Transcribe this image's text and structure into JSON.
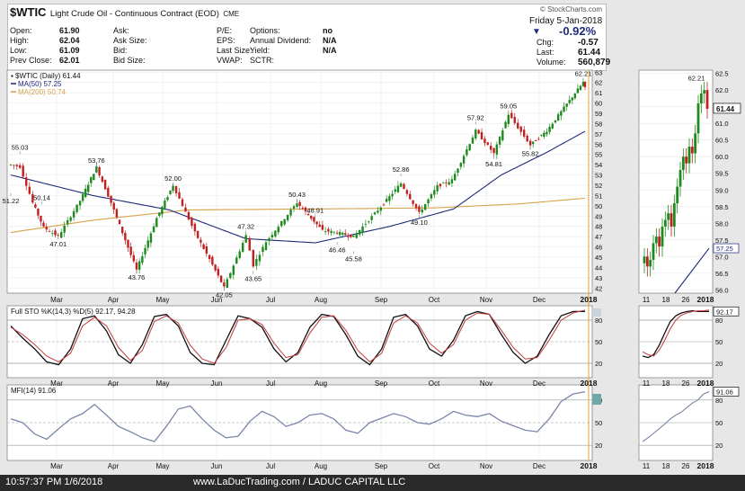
{
  "header": {
    "symbol": "$WTIC",
    "name": "Light Crude Oil - Continuous Contract (EOD)",
    "exchange": "CME",
    "watermark": "© StockCharts.com",
    "date": "Friday   5-Jan-2018",
    "change_pct": "-0.92%",
    "quote": [
      [
        [
          "Open:",
          "61.90"
        ],
        [
          "Ask:",
          ""
        ],
        [
          "P/E:",
          ""
        ],
        [
          "Options:",
          "no"
        ]
      ],
      [
        [
          "High:",
          "62.04"
        ],
        [
          "Ask Size:",
          ""
        ],
        [
          "EPS:",
          ""
        ],
        [
          "Annual Dividend:",
          "N/A"
        ]
      ],
      [
        [
          "Low:",
          "61.09"
        ],
        [
          "Bid:",
          ""
        ],
        [
          "Last Size:",
          ""
        ],
        [
          "Yield:",
          "N/A"
        ]
      ],
      [
        [
          "Prev Close:",
          "62.01"
        ],
        [
          "Bid Size:",
          ""
        ],
        [
          "VWAP:",
          ""
        ],
        [
          "SCTR:",
          ""
        ]
      ]
    ],
    "right_stats": [
      [
        "Chg:",
        "-0.57"
      ],
      [
        "Last:",
        "61.44"
      ],
      [
        "Volume:",
        "560,879"
      ]
    ]
  },
  "legend": {
    "price": "▪ $WTIC (Daily) 61.44",
    "ma50": "MA(50) 57.25",
    "ma200": "MA(200) 50.74",
    "sto": "Full STO %K(14,3) %D(5) 92.17, 94.28",
    "mfi": "MFI(14) 91.06"
  },
  "footer": {
    "left": "10:57:37 PM 1/6/2018",
    "center": "www.LaDucTrading.com / LADUC CAPITAL LLC"
  },
  "colors": {
    "up": "#1c8a1c",
    "down": "#c21f1f",
    "ma50": "#1f2a7a",
    "ma200": "#d6a24a",
    "k": "#111111",
    "d": "#c33b3b",
    "mfi": "#7a86a8",
    "cursor": "#e0a040"
  },
  "chart_data": [
    {
      "type": "candlestick",
      "title": "$WTIC Light Crude Oil - Continuous Contract (EOD)",
      "months": [
        "Mar",
        "Apr",
        "May",
        "Jun",
        "Jul",
        "Aug",
        "Sep",
        "Oct",
        "Nov",
        "Dec",
        "2018"
      ],
      "y_ticks": [
        42,
        43,
        44,
        45,
        46,
        47,
        48,
        49,
        50,
        51,
        52,
        53,
        54,
        55,
        56,
        57,
        58,
        59,
        60,
        61,
        62,
        63
      ],
      "ylim": [
        41.5,
        63.2
      ],
      "series_keypoints": [
        {
          "date": "2017-02-24",
          "close": 54.0
        },
        {
          "date": "2017-03-01",
          "close": 53.8
        },
        {
          "date": "2017-03-08",
          "close": 50.3
        },
        {
          "date": "2017-03-14",
          "close": 47.9
        },
        {
          "date": "2017-03-22",
          "close": 47.01
        },
        {
          "date": "2017-04-03",
          "close": 50.5
        },
        {
          "date": "2017-04-12",
          "close": 53.76
        },
        {
          "date": "2017-04-20",
          "close": 50.3
        },
        {
          "date": "2017-05-04",
          "close": 43.76
        },
        {
          "date": "2017-05-15",
          "close": 48.8
        },
        {
          "date": "2017-05-24",
          "close": 52.0
        },
        {
          "date": "2017-06-05",
          "close": 47.4
        },
        {
          "date": "2017-06-13",
          "close": 44.8
        },
        {
          "date": "2017-06-21",
          "close": 42.05
        },
        {
          "date": "2017-07-03",
          "close": 47.1
        },
        {
          "date": "2017-07-07",
          "close": 44.2
        },
        {
          "date": "2017-07-14",
          "close": 46.5
        },
        {
          "date": "2017-07-31",
          "close": 50.3
        },
        {
          "date": "2017-08-14",
          "close": 47.6
        },
        {
          "date": "2017-08-22",
          "close": 47.4
        },
        {
          "date": "2017-08-31",
          "close": 47.0
        },
        {
          "date": "2017-09-15",
          "close": 49.9
        },
        {
          "date": "2017-09-26",
          "close": 52.2
        },
        {
          "date": "2017-10-06",
          "close": 49.3
        },
        {
          "date": "2017-10-16",
          "close": 51.9
        },
        {
          "date": "2017-10-24",
          "close": 52.5
        },
        {
          "date": "2017-11-06",
          "close": 57.3
        },
        {
          "date": "2017-11-16",
          "close": 55.1
        },
        {
          "date": "2017-11-24",
          "close": 58.9
        },
        {
          "date": "2017-12-06",
          "close": 55.9
        },
        {
          "date": "2017-12-15",
          "close": 57.3
        },
        {
          "date": "2017-12-26",
          "close": 59.9
        },
        {
          "date": "2018-01-04",
          "close": 62.01
        },
        {
          "date": "2018-01-05",
          "close": 61.44
        }
      ],
      "annotations": [
        {
          "label": "51.22",
          "value": 51.22
        },
        {
          "label": "55.03",
          "value": 55.03
        },
        {
          "label": "50.14",
          "value": 50.14
        },
        {
          "label": "47.01",
          "value": 47.01
        },
        {
          "label": "53.76",
          "value": 53.76
        },
        {
          "label": "43.76",
          "value": 43.76
        },
        {
          "label": "52.00",
          "value": 52.0
        },
        {
          "label": "42.05",
          "value": 42.05
        },
        {
          "label": "47.32",
          "value": 47.32
        },
        {
          "label": "43.65",
          "value": 43.65
        },
        {
          "label": "50.43",
          "value": 50.43
        },
        {
          "label": "48.91",
          "value": 48.91
        },
        {
          "label": "46.46",
          "value": 46.46
        },
        {
          "label": "45.58",
          "value": 45.58
        },
        {
          "label": "52.86",
          "value": 52.86
        },
        {
          "label": "49.10",
          "value": 49.1
        },
        {
          "label": "57.92",
          "value": 57.92
        },
        {
          "label": "59.05",
          "value": 59.05
        },
        {
          "label": "54.81",
          "value": 54.81
        },
        {
          "label": "55.82",
          "value": 55.82
        },
        {
          "label": "62.21",
          "value": 62.21
        }
      ],
      "ma50_keypoints": [
        {
          "date": "2017-02-24",
          "value": 53.0
        },
        {
          "date": "2017-04-10",
          "value": 51.0
        },
        {
          "date": "2017-05-22",
          "value": 49.6
        },
        {
          "date": "2017-07-03",
          "value": 46.8
        },
        {
          "date": "2017-08-10",
          "value": 46.4
        },
        {
          "date": "2017-09-20",
          "value": 48.0
        },
        {
          "date": "2017-10-25",
          "value": 49.7
        },
        {
          "date": "2017-11-20",
          "value": 53.0
        },
        {
          "date": "2017-12-15",
          "value": 55.2
        },
        {
          "date": "2018-01-05",
          "value": 57.25
        }
      ],
      "ma200_keypoints": [
        {
          "date": "2017-02-24",
          "value": 47.4
        },
        {
          "date": "2017-04-10",
          "value": 48.6
        },
        {
          "date": "2017-06-01",
          "value": 49.6
        },
        {
          "date": "2017-08-15",
          "value": 49.7
        },
        {
          "date": "2017-10-15",
          "value": 49.8
        },
        {
          "date": "2017-12-01",
          "value": 50.2
        },
        {
          "date": "2018-01-05",
          "value": 50.74
        }
      ]
    },
    {
      "type": "line",
      "title": "Full STO %K(14,3) %D(5)",
      "y_ticks": [
        20,
        50,
        80
      ],
      "series": [
        {
          "name": "%K",
          "last": 92.17,
          "values": [
            72,
            55,
            40,
            22,
            18,
            40,
            82,
            86,
            65,
            32,
            20,
            46,
            85,
            88,
            72,
            35,
            20,
            18,
            52,
            86,
            82,
            70,
            40,
            22,
            35,
            70,
            88,
            85,
            60,
            30,
            18,
            40,
            84,
            88,
            72,
            40,
            30,
            52,
            86,
            92,
            88,
            60,
            35,
            20,
            30,
            60,
            86,
            92,
            92
          ]
        },
        {
          "name": "%D",
          "last": 94.28,
          "values": [
            70,
            60,
            46,
            30,
            22,
            34,
            72,
            84,
            72,
            42,
            24,
            38,
            78,
            86,
            76,
            45,
            26,
            20,
            42,
            80,
            82,
            74,
            48,
            28,
            32,
            62,
            84,
            86,
            66,
            38,
            22,
            34,
            76,
            86,
            76,
            48,
            34,
            46,
            80,
            90,
            88,
            66,
            42,
            26,
            28,
            52,
            80,
            90,
            94
          ]
        }
      ]
    },
    {
      "type": "line",
      "title": "MFI(14)",
      "y_ticks": [
        20,
        50,
        80
      ],
      "series": [
        {
          "name": "MFI",
          "last": 91.06,
          "values": [
            55,
            50,
            35,
            28,
            42,
            55,
            62,
            74,
            60,
            45,
            38,
            30,
            25,
            45,
            68,
            72,
            55,
            40,
            30,
            32,
            52,
            65,
            58,
            45,
            50,
            60,
            62,
            55,
            40,
            36,
            50,
            56,
            62,
            58,
            50,
            48,
            55,
            65,
            60,
            58,
            62,
            52,
            46,
            40,
            38,
            55,
            78,
            88,
            91
          ]
        }
      ]
    },
    {
      "type": "candlestick",
      "title": "zoom inset",
      "x_ticks": [
        "11",
        "18",
        "26",
        "2018"
      ],
      "y_ticks": [
        56.0,
        56.5,
        57.0,
        57.5,
        58.0,
        58.5,
        59.0,
        59.5,
        60.0,
        60.5,
        61.0,
        61.5,
        62.0,
        62.5
      ],
      "ylim": [
        55.9,
        62.6
      ],
      "last_label": "61.44",
      "ma50_label": "57.25",
      "high_label": "62.21",
      "sto_label": "92.17",
      "mfi_label": "91.06"
    }
  ]
}
